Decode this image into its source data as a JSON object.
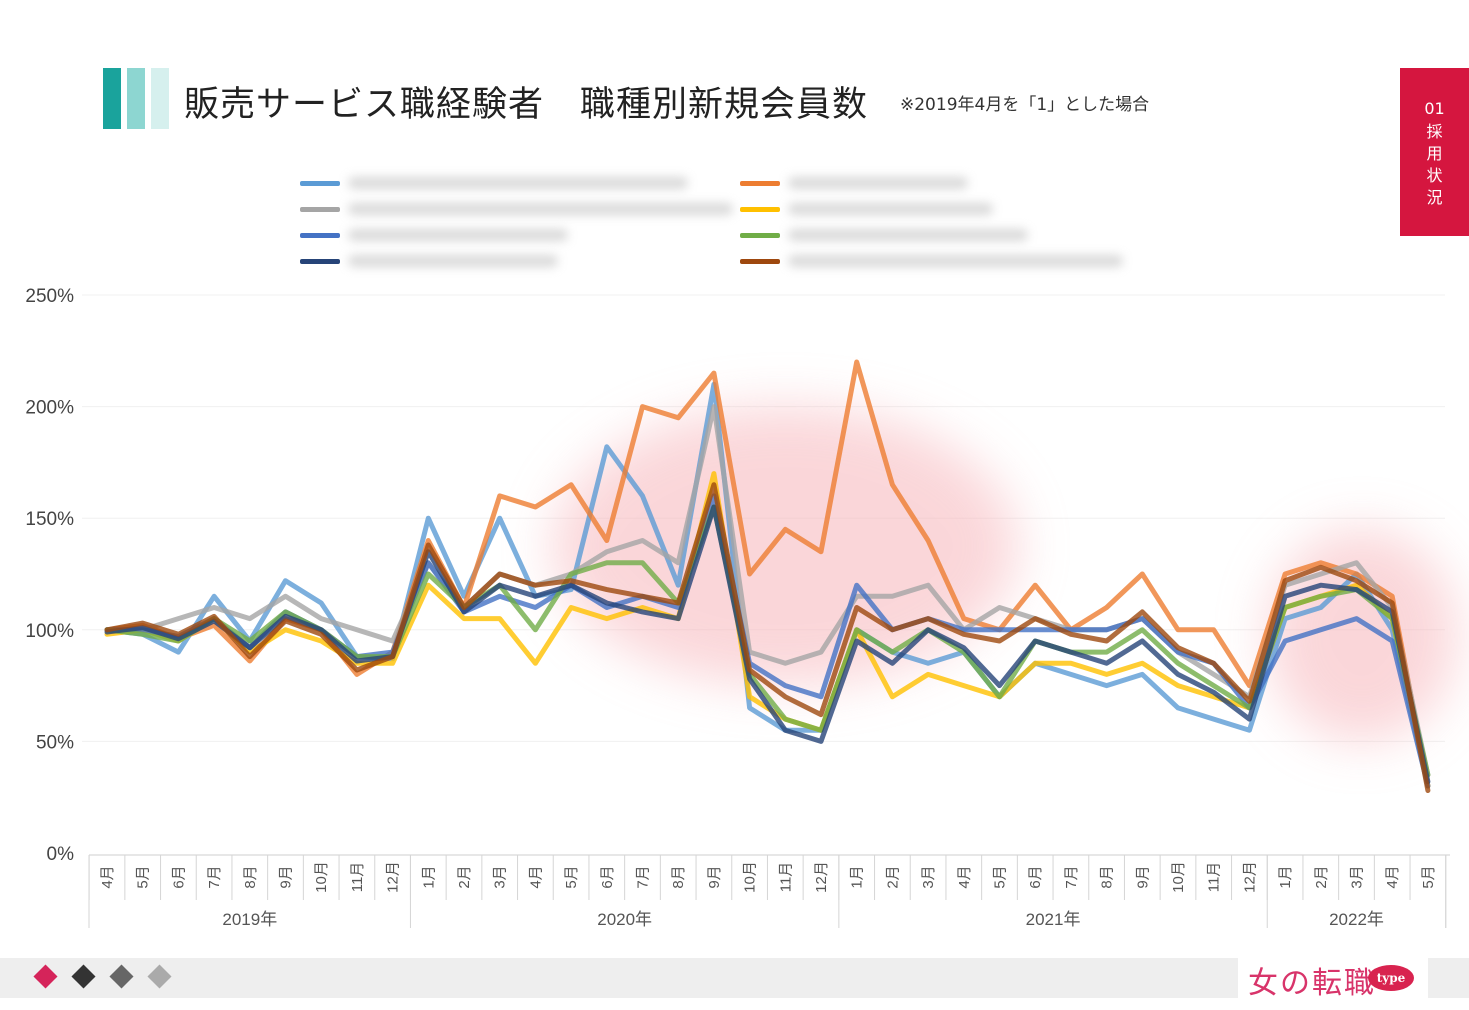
{
  "header": {
    "title": "販売サービス職経験者　職種別新規会員数",
    "note": "※2019年4月を「1」とした場合",
    "bar_colors": [
      "#1aa39c",
      "#8dd6d1",
      "#d6f0ee"
    ]
  },
  "side_tab": {
    "number": "01",
    "label": "採用状況",
    "color": "#d5163f"
  },
  "footer": {
    "diamond_colors": [
      "#d5245a",
      "#333333",
      "#666666",
      "#aaaaaa"
    ],
    "logo_text": "女の転職",
    "logo_badge": "type"
  },
  "chart_data": {
    "type": "line",
    "ylim": [
      0,
      250
    ],
    "yticks": [
      "0%",
      "50%",
      "100%",
      "150%",
      "200%",
      "250%"
    ],
    "x": [
      "4月",
      "5月",
      "6月",
      "7月",
      "8月",
      "9月",
      "10月",
      "11月",
      "12月",
      "1月",
      "2月",
      "3月",
      "4月",
      "5月",
      "6月",
      "7月",
      "8月",
      "9月",
      "10月",
      "11月",
      "12月",
      "1月",
      "2月",
      "3月",
      "4月",
      "5月",
      "6月",
      "7月",
      "8月",
      "9月",
      "10月",
      "11月",
      "12月",
      "1月",
      "2月",
      "3月",
      "4月",
      "5月"
    ],
    "year_groups": [
      {
        "label": "2019年",
        "start": 0,
        "end": 8
      },
      {
        "label": "2020年",
        "start": 9,
        "end": 20
      },
      {
        "label": "2021年",
        "start": 21,
        "end": 32
      },
      {
        "label": "2022年",
        "start": 33,
        "end": 37
      }
    ],
    "highlight_regions": [
      {
        "x_start": 12.5,
        "x_end": 25.5,
        "y_low": 75,
        "y_high": 200
      },
      {
        "x_start": 32.5,
        "x_end": 37.8,
        "y_low": 50,
        "y_high": 145
      }
    ],
    "series": [
      {
        "color": "#5b9bd5",
        "values": [
          100,
          98,
          90,
          115,
          95,
          122,
          112,
          88,
          87,
          150,
          115,
          150,
          115,
          118,
          182,
          160,
          120,
          210,
          65,
          55,
          55,
          100,
          90,
          85,
          90,
          70,
          85,
          80,
          75,
          80,
          65,
          60,
          55,
          105,
          110,
          125,
          100,
          30
        ]
      },
      {
        "color": "#ed7d31",
        "values": [
          100,
          102,
          96,
          102,
          86,
          105,
          100,
          80,
          90,
          140,
          110,
          160,
          155,
          165,
          140,
          200,
          195,
          215,
          125,
          145,
          135,
          220,
          165,
          140,
          105,
          100,
          120,
          100,
          110,
          125,
          100,
          100,
          75,
          125,
          130,
          125,
          115,
          30
        ]
      },
      {
        "color": "#a5a5a5",
        "values": [
          100,
          100,
          105,
          110,
          105,
          115,
          105,
          100,
          95,
          130,
          110,
          125,
          120,
          125,
          135,
          140,
          130,
          200,
          90,
          85,
          90,
          115,
          115,
          120,
          100,
          110,
          105,
          100,
          100,
          105,
          90,
          80,
          70,
          120,
          125,
          130,
          110,
          35
        ]
      },
      {
        "color": "#ffc000",
        "values": [
          98,
          100,
          95,
          105,
          90,
          100,
          95,
          85,
          85,
          120,
          105,
          105,
          85,
          110,
          105,
          110,
          105,
          170,
          70,
          60,
          55,
          100,
          70,
          80,
          75,
          70,
          85,
          85,
          80,
          85,
          75,
          70,
          65,
          110,
          115,
          120,
          105,
          30
        ]
      },
      {
        "color": "#4472c4",
        "values": [
          100,
          100,
          97,
          105,
          92,
          108,
          100,
          88,
          90,
          130,
          108,
          115,
          110,
          120,
          110,
          115,
          110,
          160,
          85,
          75,
          70,
          120,
          100,
          105,
          100,
          100,
          100,
          100,
          100,
          105,
          90,
          85,
          65,
          95,
          100,
          105,
          95,
          30
        ]
      },
      {
        "color": "#70ad47",
        "values": [
          100,
          98,
          95,
          105,
          95,
          108,
          100,
          88,
          88,
          125,
          110,
          120,
          100,
          125,
          130,
          130,
          112,
          155,
          80,
          60,
          55,
          100,
          90,
          100,
          90,
          70,
          95,
          90,
          90,
          100,
          85,
          75,
          65,
          110,
          115,
          118,
          105,
          35
        ]
      },
      {
        "color": "#264478",
        "values": [
          99,
          101,
          96,
          104,
          92,
          106,
          100,
          86,
          88,
          135,
          108,
          120,
          115,
          120,
          112,
          108,
          105,
          155,
          78,
          55,
          50,
          95,
          85,
          100,
          92,
          75,
          95,
          90,
          85,
          95,
          80,
          72,
          60,
          115,
          120,
          118,
          108,
          32
        ]
      },
      {
        "color": "#9e480e",
        "values": [
          100,
          103,
          98,
          106,
          88,
          104,
          98,
          82,
          88,
          138,
          110,
          125,
          120,
          122,
          118,
          115,
          112,
          165,
          82,
          70,
          62,
          110,
          100,
          105,
          98,
          95,
          105,
          98,
          95,
          108,
          92,
          85,
          68,
          122,
          128,
          122,
          112,
          28
        ]
      }
    ]
  }
}
